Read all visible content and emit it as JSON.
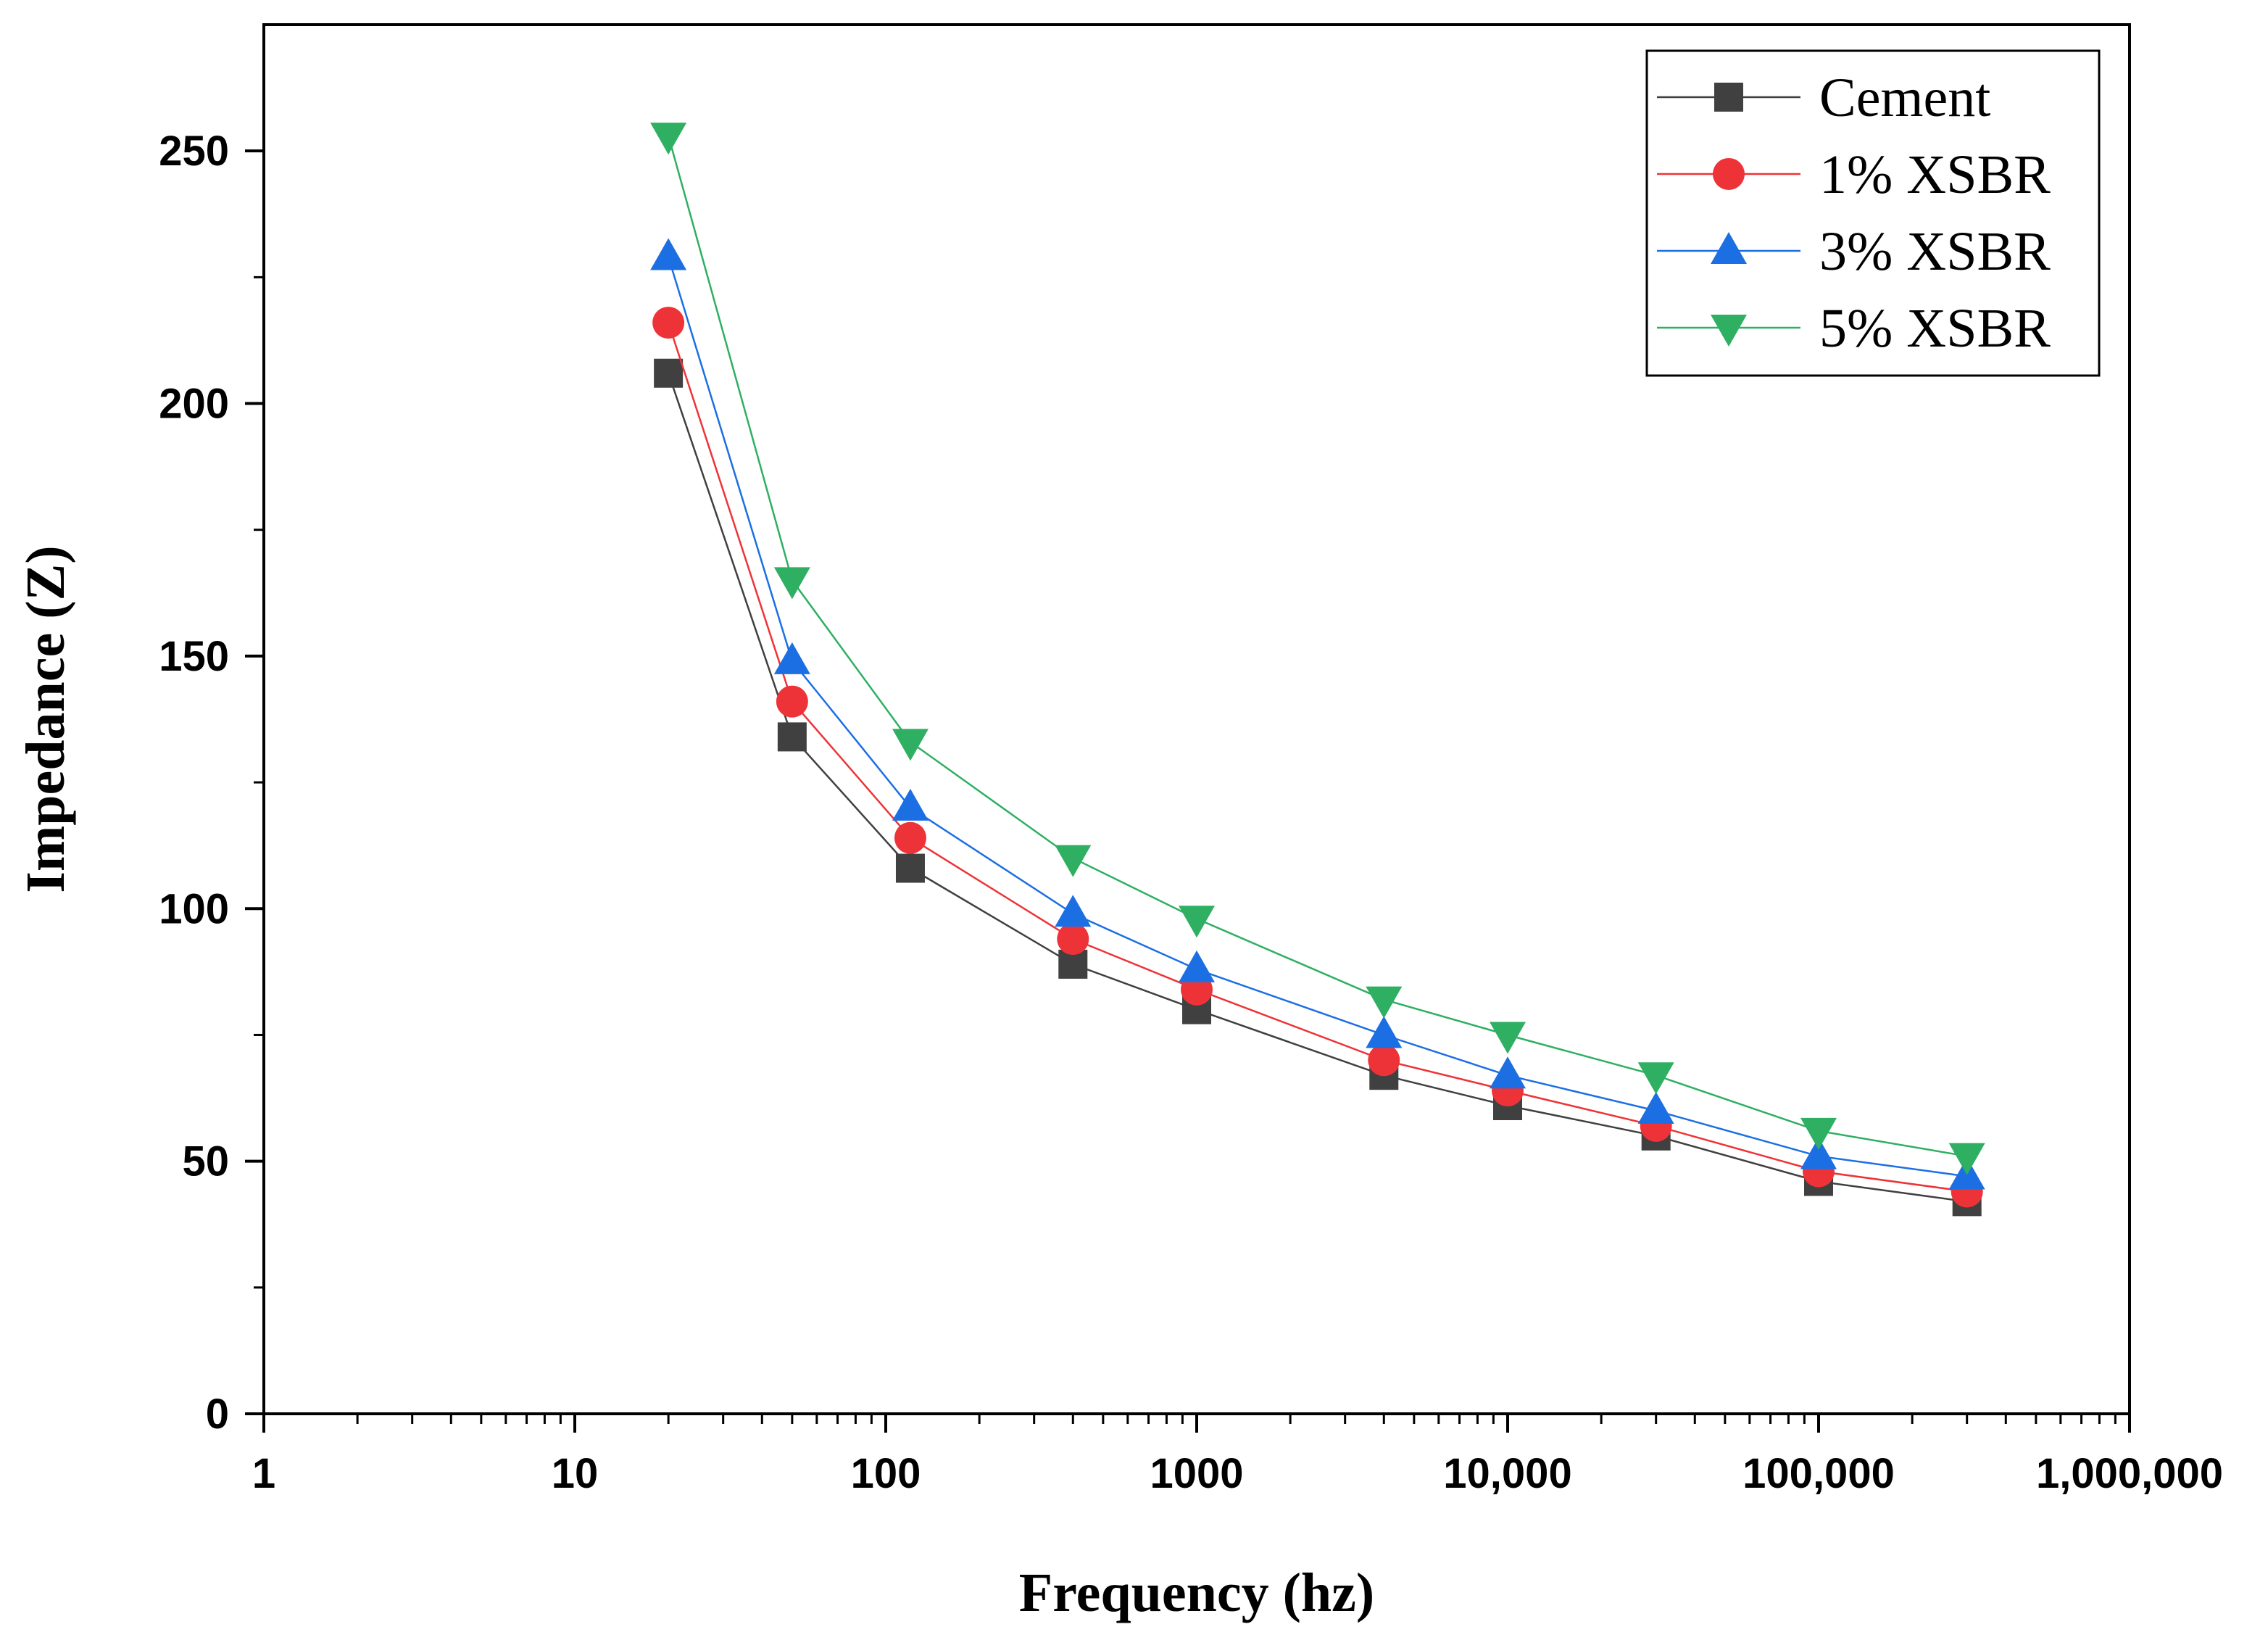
{
  "chart_data": {
    "type": "line",
    "title": "",
    "xlabel": "Frequency (hz)",
    "ylabel": "Impedance (Z)",
    "x_scale": "log",
    "xlim": [
      1,
      1000000
    ],
    "ylim": [
      0,
      275
    ],
    "x_ticks": [
      1,
      10,
      100,
      1000,
      10000,
      100000,
      1000000
    ],
    "x_tick_labels": [
      "1",
      "10",
      "100",
      "1000",
      "10,000",
      "100,000",
      "1,000,000"
    ],
    "y_ticks": [
      0,
      50,
      100,
      150,
      200,
      250
    ],
    "y_tick_labels": [
      "0",
      "50",
      "100",
      "150",
      "200",
      "250"
    ],
    "grid": false,
    "legend_position": "top-right",
    "x": [
      20,
      50,
      120,
      400,
      1000,
      4000,
      10000,
      30000,
      100000,
      300000
    ],
    "series": [
      {
        "name": "Cement",
        "marker": "square",
        "color": "#404040",
        "values": [
          206,
          134,
          108,
          89,
          80,
          67,
          61,
          55,
          46,
          42
        ]
      },
      {
        "name": "1% XSBR",
        "marker": "circle",
        "color": "#ee3338",
        "values": [
          216,
          141,
          114,
          94,
          84,
          70,
          64,
          57,
          48,
          44
        ]
      },
      {
        "name": "3% XSBR",
        "marker": "triangle-up",
        "color": "#1c6fe3",
        "values": [
          229,
          149,
          120,
          99,
          88,
          75,
          67,
          60,
          51,
          47
        ]
      },
      {
        "name": "5% XSBR",
        "marker": "triangle-down",
        "color": "#2eaf62",
        "values": [
          253,
          165,
          133,
          110,
          98,
          82,
          75,
          67,
          56,
          51
        ]
      }
    ]
  }
}
